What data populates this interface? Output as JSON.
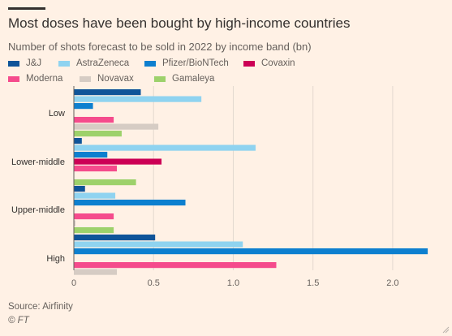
{
  "header": {
    "title": "Most doses have been bought by high-income countries",
    "subtitle": "Number of shots forecast to be sold in 2022 by income band (bn)"
  },
  "legend": [
    {
      "name": "J&J",
      "color": "#0f5499"
    },
    {
      "name": "AstraZeneca",
      "color": "#8fd3f0"
    },
    {
      "name": "Pfizer/BioNTech",
      "color": "#0d7fcf"
    },
    {
      "name": "Covaxin",
      "color": "#cc0055"
    },
    {
      "name": "Moderna",
      "color": "#f54b8c"
    },
    {
      "name": "Novavax",
      "color": "#d6ccc4"
    },
    {
      "name": "Gamaleya",
      "color": "#9dd16b"
    }
  ],
  "chart_data": {
    "type": "bar",
    "orientation": "horizontal",
    "title": "Most doses have been bought by high-income countries",
    "subtitle": "Number of shots forecast to be sold in 2022 by income band (bn)",
    "categories": [
      "Low",
      "Lower-middle",
      "Upper-middle",
      "High"
    ],
    "series": [
      {
        "name": "J&J",
        "color": "#0f5499",
        "values": [
          0.42,
          0.05,
          0.07,
          0.51
        ]
      },
      {
        "name": "AstraZeneca",
        "color": "#8fd3f0",
        "values": [
          0.8,
          1.14,
          0.26,
          1.06
        ]
      },
      {
        "name": "Pfizer/BioNTech",
        "color": "#0d7fcf",
        "values": [
          0.12,
          0.21,
          0.7,
          2.22
        ]
      },
      {
        "name": "Covaxin",
        "color": "#cc0055",
        "values": [
          0,
          0.55,
          0,
          0
        ]
      },
      {
        "name": "Moderna",
        "color": "#f54b8c",
        "values": [
          0.25,
          0.27,
          0.25,
          1.27
        ]
      },
      {
        "name": "Novavax",
        "color": "#d6ccc4",
        "values": [
          0.53,
          0,
          0.01,
          0.27
        ]
      },
      {
        "name": "Gamaleya",
        "color": "#9dd16b",
        "values": [
          0.3,
          0.39,
          0.25,
          0
        ]
      }
    ],
    "xlim": [
      0,
      2.25
    ],
    "xticks": [
      0,
      0.5,
      1,
      1.5,
      2
    ],
    "xtick_labels": [
      "0",
      "0.5",
      "1.0",
      "1.5",
      "2.0"
    ],
    "grid": "vertical",
    "legend_position": "top"
  },
  "footer": {
    "source": "Source: Airfinity",
    "credit": "© FT"
  }
}
